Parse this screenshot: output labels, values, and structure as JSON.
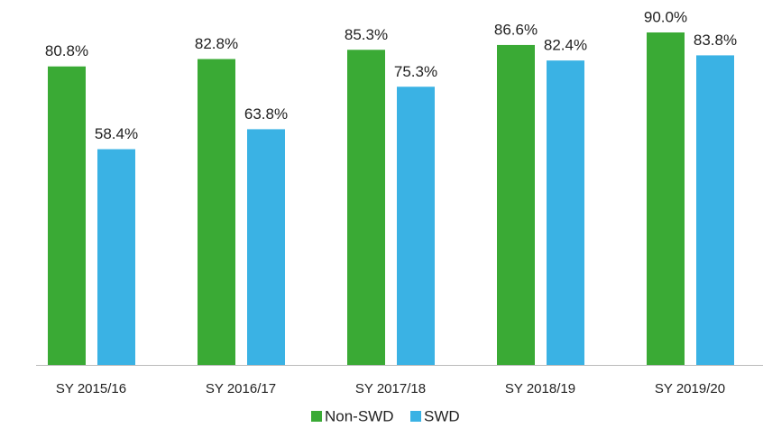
{
  "chart_data": {
    "type": "bar",
    "categories": [
      "SY 2015/16",
      "SY 2016/17",
      "SY 2017/18",
      "SY 2018/19",
      "SY 2019/20"
    ],
    "series": [
      {
        "name": "Non-SWD",
        "color": "#3aaa35",
        "values": [
          80.8,
          82.8,
          85.3,
          86.6,
          90.0
        ],
        "value_labels": [
          "80.8%",
          "82.8%",
          "85.3%",
          "86.6%",
          "90.0%"
        ]
      },
      {
        "name": "SWD",
        "color": "#3ab2e4",
        "values": [
          58.4,
          63.8,
          75.3,
          82.4,
          83.8
        ],
        "value_labels": [
          "58.4%",
          "63.8%",
          "75.3%",
          "82.4%",
          "83.8%"
        ]
      }
    ]
  }
}
